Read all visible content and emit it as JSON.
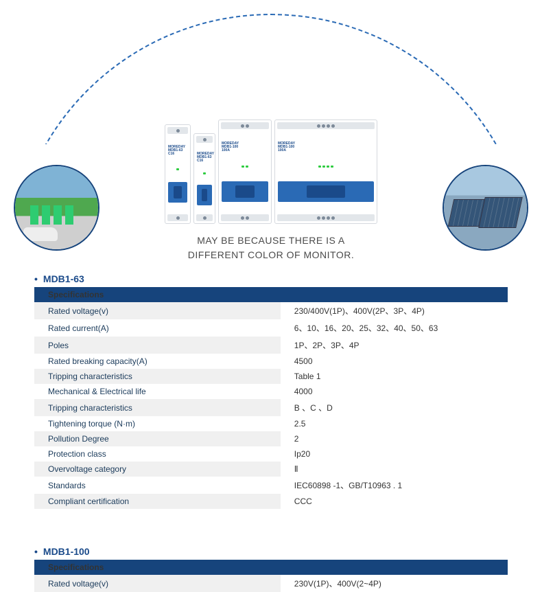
{
  "colors": {
    "brand_blue": "#16447c",
    "accent_blue": "#2a6ab5",
    "row_alt_bg": "#f0f0f0",
    "text_dark": "#333333",
    "text_muted": "#4a4a4a"
  },
  "hero": {
    "tagline_line1": "MAY BE BECAUSE THERE IS A",
    "tagline_line2": "DIFFERENT COLOR OF MONITOR.",
    "breaker_brand": "MOREDAY",
    "breaker_models": [
      "MDB1-63",
      "MDB1-63",
      "MDB1-100",
      "MDB1-100"
    ],
    "breaker_sub": [
      "C16",
      "C16",
      "100A",
      "100A"
    ],
    "left_circle_subject": "EV charging stations",
    "right_circle_subject": "Solar panels"
  },
  "sections": [
    {
      "title": "MDB1-63",
      "header": "Specifications",
      "rows": [
        {
          "label": "Rated voltage(v)",
          "value": "230/400V(1P)、400V(2P、3P、4P)"
        },
        {
          "label": "Rated current(A)",
          "value": "6、10、16、20、25、32、40、50、63"
        },
        {
          "label": "Poles",
          "value": "1P、2P、3P、4P"
        },
        {
          "label": "Rated breaking capacity(A)",
          "value": "4500"
        },
        {
          "label": "Tripping characteristics",
          "value": "Table 1"
        },
        {
          "label": "Mechanical & Electrical life",
          "value": "4000"
        },
        {
          "label": "Tripping characteristics",
          "value": "B 、C 、D"
        },
        {
          "label": "Tightening torque (N·m)",
          "value": "2.5"
        },
        {
          "label": "Pollution Degree",
          "value": "2"
        },
        {
          "label": "Protection class",
          "value": "Ip20"
        },
        {
          "label": "Overvoltage category",
          "value": "Ⅱ"
        },
        {
          "label": "Standards",
          "value": "IEC60898 -1、GB/T10963 . 1"
        },
        {
          "label": "Compliant certification",
          "value": "CCC"
        }
      ]
    },
    {
      "title": "MDB1-100",
      "header": "Specifications",
      "rows": [
        {
          "label": "Rated voltage(v)",
          "value": "230V(1P)、400V(2~4P)"
        }
      ]
    }
  ]
}
